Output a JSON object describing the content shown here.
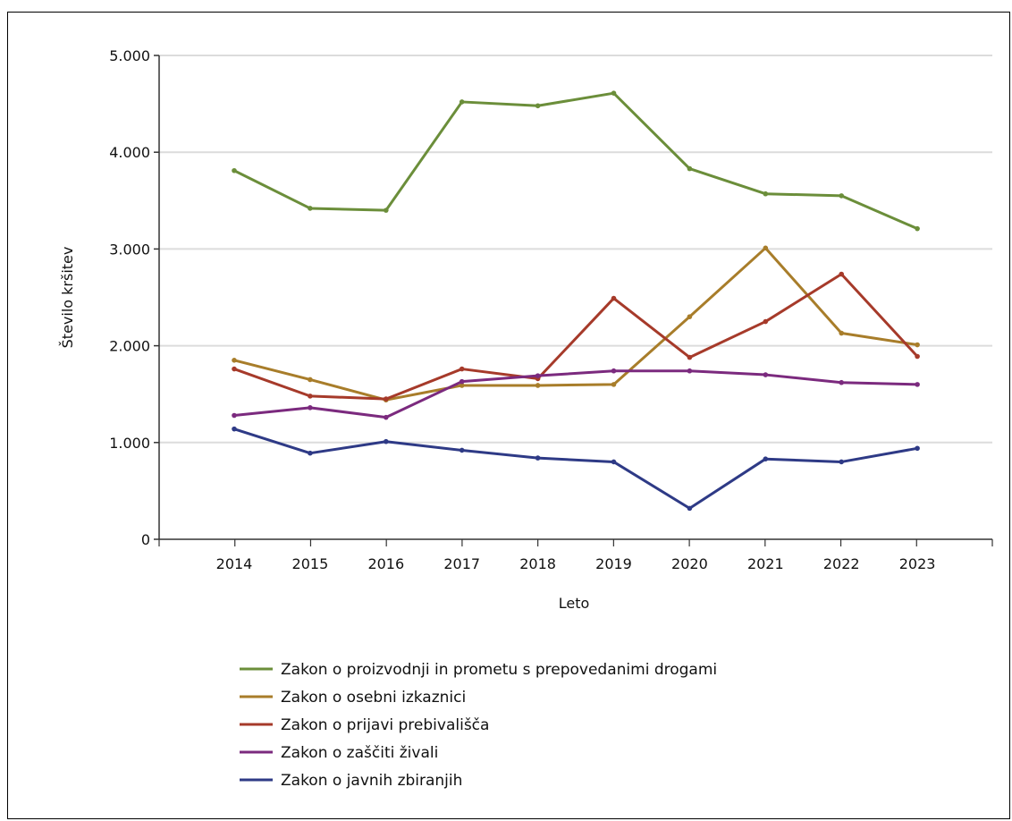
{
  "chart_data": {
    "type": "line",
    "title": "",
    "xlabel": "Leto",
    "ylabel": "Število kršitev",
    "ylim": [
      0,
      5000
    ],
    "yticks": [
      0,
      1000,
      2000,
      3000,
      4000,
      5000
    ],
    "ytick_labels": [
      "0",
      "1.000",
      "2.000",
      "3.000",
      "4.000",
      "5.000"
    ],
    "categories": [
      "2014",
      "2015",
      "2016",
      "2017",
      "2018",
      "2019",
      "2020",
      "2021",
      "2022",
      "2023"
    ],
    "grid": "horizontal",
    "legend_position": "bottom",
    "series": [
      {
        "name": "Zakon o proizvodnji in prometu s prepovedanimi drogami",
        "color": "#6b8e3a",
        "values": [
          3810,
          3420,
          3400,
          4520,
          4480,
          4610,
          3830,
          3570,
          3550,
          3210
        ]
      },
      {
        "name": "Zakon o osebni izkaznici",
        "color": "#a87d2a",
        "values": [
          1850,
          1650,
          1440,
          1590,
          1590,
          1600,
          2300,
          3010,
          2130,
          2010
        ]
      },
      {
        "name": "Zakon o prijavi prebivališča",
        "color": "#a63a2a",
        "values": [
          1760,
          1480,
          1450,
          1760,
          1660,
          2490,
          1880,
          2250,
          2740,
          1890
        ]
      },
      {
        "name": "Zakon o zaščiti živali",
        "color": "#7b2a7e",
        "values": [
          1280,
          1360,
          1260,
          1630,
          1690,
          1740,
          1740,
          1700,
          1620,
          1600
        ]
      },
      {
        "name": "Zakon o javnih zbiranjih",
        "color": "#2e3a86",
        "values": [
          1140,
          890,
          1010,
          920,
          840,
          800,
          320,
          830,
          800,
          940
        ]
      }
    ]
  }
}
